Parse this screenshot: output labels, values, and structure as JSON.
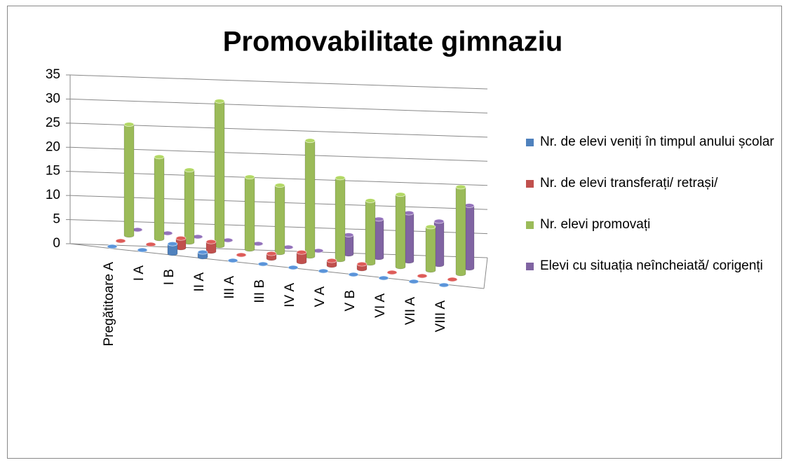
{
  "chart_data": {
    "type": "bar3d",
    "title": "Promovabilitate gimnaziu",
    "categories": [
      "Pregătitoare A",
      "I A",
      "I B",
      "II A",
      "III A",
      "III B",
      "IV A",
      "V A",
      "V B",
      "VI A",
      "VII A",
      "VIII A"
    ],
    "series": [
      {
        "name": "Nr. de elevi veniți în timpul anului școlar",
        "color": "#4f81bd",
        "values": [
          0,
          0,
          2,
          1,
          0,
          0,
          0,
          0,
          0,
          0,
          0,
          0
        ]
      },
      {
        "name": "Nr. de elevi transferați/ retrași/",
        "color": "#c0504d",
        "values": [
          0,
          0,
          2,
          2,
          0,
          1,
          2,
          1,
          1,
          0,
          0,
          0
        ]
      },
      {
        "name": "Nr. elevi promovați",
        "color": "#9bbb59",
        "values": [
          23,
          17,
          15,
          30,
          15,
          14,
          24,
          17,
          13,
          15,
          9,
          18
        ]
      },
      {
        "name": "Elevi cu situația neîncheiată/ corigenți",
        "color": "#8064a2",
        "values": [
          0,
          0,
          0,
          0,
          0,
          0,
          0,
          4,
          8,
          10,
          9,
          13
        ]
      }
    ],
    "ylim": [
      0,
      35
    ],
    "yticks": [
      0,
      5,
      10,
      15,
      20,
      25,
      30,
      35
    ],
    "grid": true,
    "legend": "right"
  }
}
